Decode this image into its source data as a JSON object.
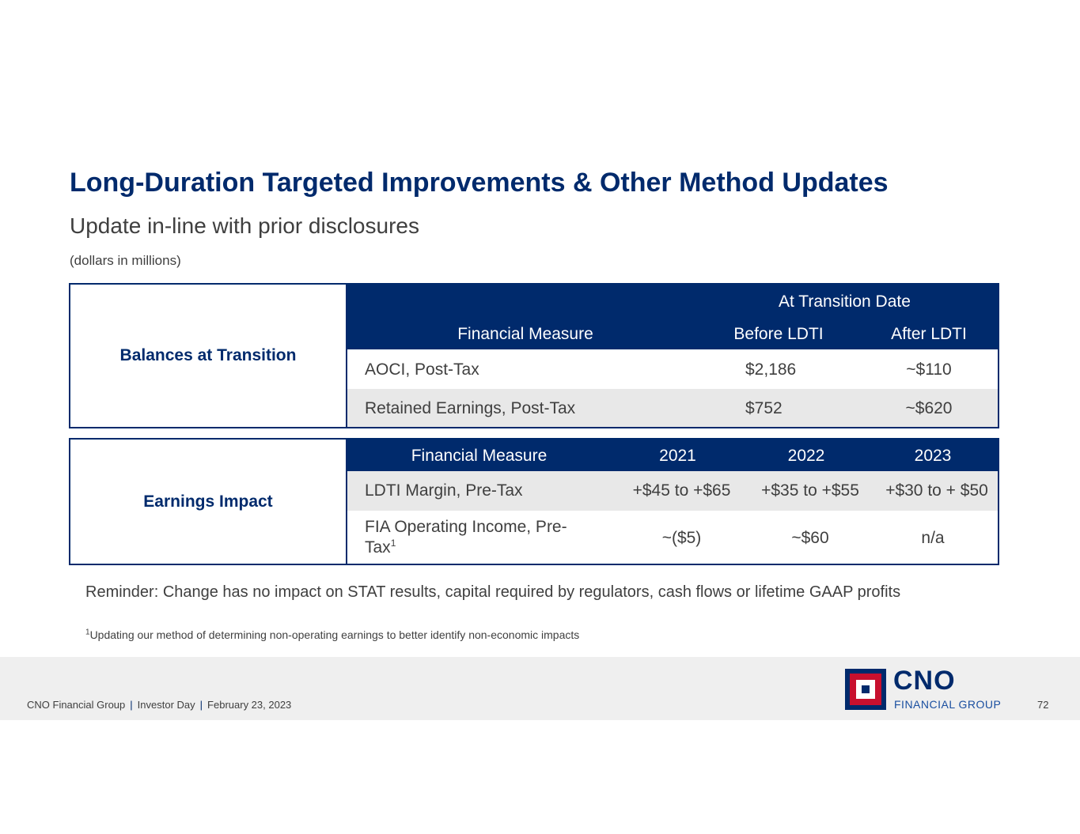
{
  "header": {
    "title": "Long-Duration Targeted Improvements & Other Method Updates",
    "subtitle": "Update in-line with prior disclosures",
    "units_note": "(dollars in millions)"
  },
  "balances": {
    "section_label": "Balances at Transition",
    "group_header": "At Transition Date",
    "columns": [
      "Financial Measure",
      "Before LDTI",
      "After LDTI"
    ],
    "rows": [
      {
        "measure": "AOCI, Post-Tax",
        "before": "$2,186",
        "after": "~$110"
      },
      {
        "measure": "Retained Earnings, Post-Tax",
        "before": "$752",
        "after": "~$620"
      }
    ]
  },
  "earnings": {
    "section_label": "Earnings Impact",
    "columns": [
      "Financial Measure",
      "2021",
      "2022",
      "2023"
    ],
    "rows": [
      {
        "measure": "LDTI Margin, Pre-Tax",
        "y2021": "+$45 to +$65",
        "y2022": "+$35 to +$55",
        "y2023": "+$30 to + $50"
      },
      {
        "measure_line1": "FIA Operating Income, Pre-",
        "measure_line2": "Tax",
        "footnote_marker": "1",
        "y2021": "~($5)",
        "y2022": "~$60",
        "y2023": "n/a"
      }
    ]
  },
  "reminder": "Reminder: Change has no impact on STAT results, capital required by regulators, cash flows or lifetime GAAP profits",
  "footnote": {
    "marker": "1",
    "text": "Updating our method of determining non-operating earnings to better identify non-economic impacts"
  },
  "footer": {
    "company": "CNO Financial Group",
    "event": "Investor Day",
    "date": "February 23, 2023",
    "separator": "|",
    "page_number": "72",
    "logo": {
      "name": "CNO",
      "sub": "FINANCIAL GROUP",
      "icon": "cno-logo-icon"
    }
  },
  "colors": {
    "brand_navy": "#002a6c",
    "brand_red": "#c8102e",
    "row_shade": "#e8e8e8",
    "footer_bg": "#efefef"
  }
}
